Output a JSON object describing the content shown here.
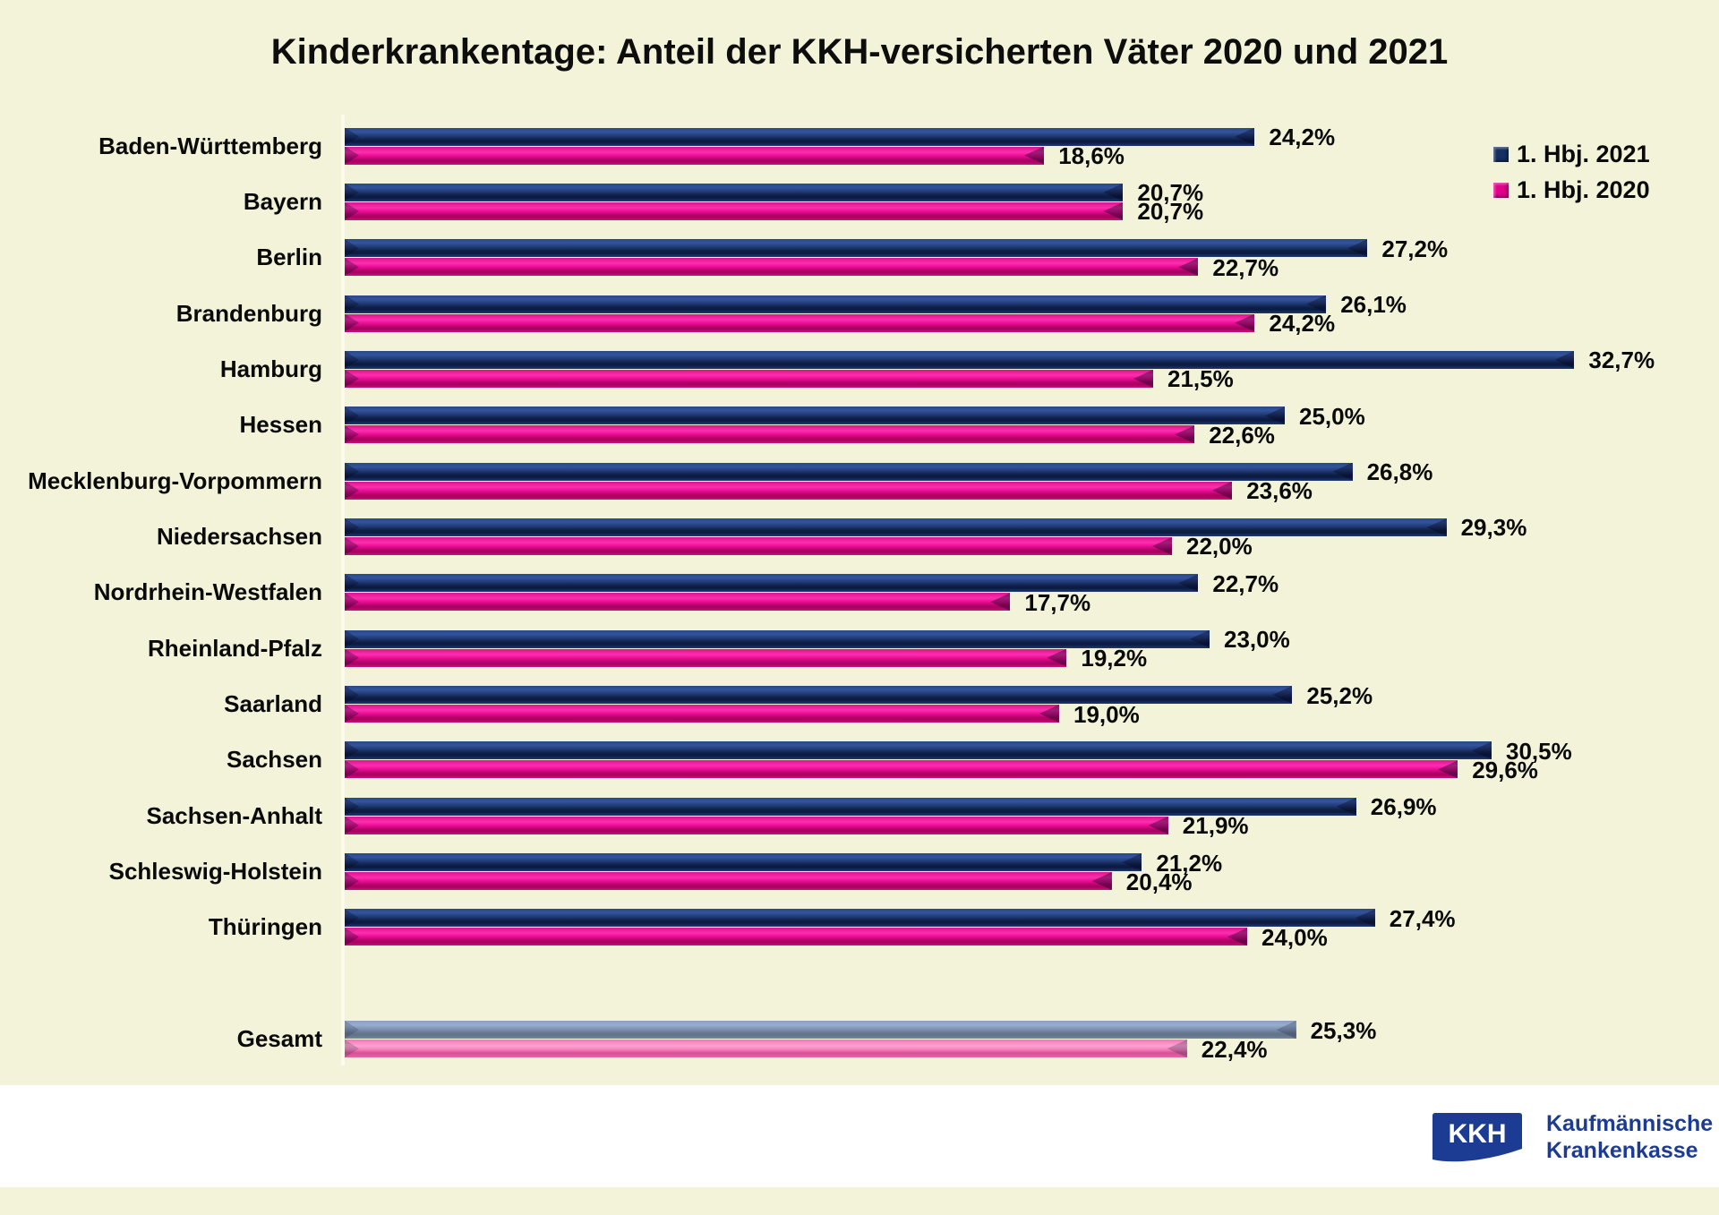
{
  "title": "Kinderkrankentage: Anteil der KKH-versicherten Väter 2020 und 2021",
  "chart_data": {
    "type": "bar",
    "orientation": "horizontal",
    "title": "Kinderkrankentage: Anteil der KKH-versicherten Väter 2020 und 2021",
    "unit": "%",
    "xlim": [
      0,
      34.5
    ],
    "grid": false,
    "legend_position": "top-right",
    "categories": [
      "Baden-Württemberg",
      "Bayern",
      "Berlin",
      "Brandenburg",
      "Hamburg",
      "Hessen",
      "Mecklenburg-Vorpommern",
      "Niedersachsen",
      "Nordrhein-Westfalen",
      "Rheinland-Pfalz",
      "Saarland",
      "Sachsen",
      "Sachsen-Anhalt",
      "Schleswig-Holstein",
      "Thüringen",
      "Gesamt"
    ],
    "series": [
      {
        "name": "1. Hbj. 2021",
        "values": [
          24.2,
          20.7,
          27.2,
          26.1,
          32.7,
          25.0,
          26.8,
          29.3,
          22.7,
          23.0,
          25.2,
          30.5,
          26.9,
          21.2,
          27.4,
          25.3
        ]
      },
      {
        "name": "1. Hbj. 2020",
        "values": [
          18.6,
          20.7,
          22.7,
          24.2,
          21.5,
          22.6,
          23.6,
          22.0,
          17.7,
          19.2,
          19.0,
          29.6,
          21.9,
          20.4,
          24.0,
          22.4
        ]
      }
    ],
    "value_labels": {
      "s2021": [
        "24,2%",
        "20,7%",
        "27,2%",
        "26,1%",
        "32,7%",
        "25,0%",
        "26,8%",
        "29,3%",
        "22,7%",
        "23,0%",
        "25,2%",
        "30,5%",
        "26,9%",
        "21,2%",
        "27,4%",
        "25,3%"
      ],
      "s2020": [
        "18,6%",
        "20,7%",
        "22,7%",
        "24,2%",
        "21,5%",
        "22,6%",
        "23,6%",
        "22,0%",
        "17,7%",
        "19,2%",
        "19,0%",
        "29,6%",
        "21,9%",
        "20,4%",
        "24,0%",
        "22,4%"
      ]
    },
    "total_row": "Gesamt"
  },
  "legend": {
    "items": [
      {
        "label": "1. Hbj. 2021"
      },
      {
        "label": "1. Hbj. 2020"
      }
    ]
  },
  "footer": {
    "logo_text": "KKH",
    "org_name_line1": "Kaufmännische",
    "org_name_line2": "Krankenkasse"
  },
  "colors": {
    "background": "#f3f3da",
    "bar_2021": "#16305f",
    "bar_2020": "#e3008b",
    "total_2021": "#74869f",
    "total_2020": "#f583bd",
    "logo_blue": "#1c3c94",
    "text": "#0a0a0a"
  }
}
